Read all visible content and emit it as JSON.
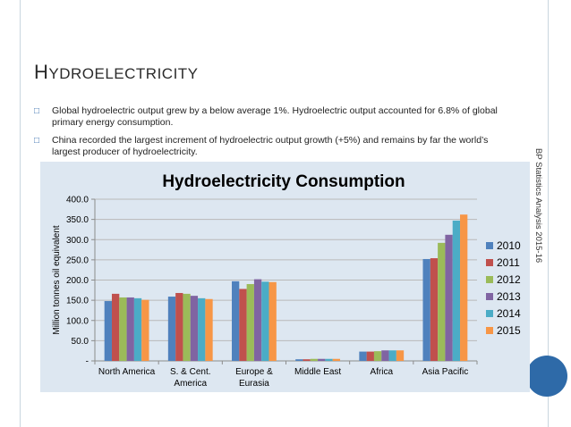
{
  "slide": {
    "title_first": "H",
    "title_rest": "YDROELECTRICITY",
    "bullets": [
      "Global hydroelectric output grew by a below average 1%. Hydroelectric output accounted for 6.8% of global primary energy consumption.",
      "China recorded the largest increment of hydroelectric output growth (+5%) and remains by far the world’s largest producer of hydroelectricity."
    ],
    "side_caption": "BP Statistics Analysis 2015-16",
    "bullet_icon": "hollow-square-bullet-icon"
  },
  "chart_data": {
    "type": "bar",
    "title": "Hydroelectricity Consumption",
    "ylabel": "Million tonnes oil equivalent",
    "xlabel": "",
    "categories": [
      "North America",
      "S. & Cent. America",
      "Europe & Eurasia",
      "Middle East",
      "Africa",
      "Asia Pacific"
    ],
    "category_lines": [
      [
        "North America"
      ],
      [
        "S. & Cent.",
        "America"
      ],
      [
        "Europe &",
        "Eurasia"
      ],
      [
        "Middle East"
      ],
      [
        "Africa"
      ],
      [
        "Asia Pacific"
      ]
    ],
    "ylim": [
      0,
      400
    ],
    "yticks": [
      0,
      50,
      100,
      150,
      200,
      250,
      300,
      350,
      400
    ],
    "ytick_labels": [
      "-",
      "50.0",
      "100.0",
      "150.0",
      "200.0",
      "250.0",
      "300.0",
      "350.0",
      "400.0"
    ],
    "grid": true,
    "legend_position": "right",
    "series": [
      {
        "name": "2010",
        "color": "#4f81bd",
        "values": [
          148,
          159,
          197,
          4,
          23,
          252
        ]
      },
      {
        "name": "2011",
        "color": "#c0504d",
        "values": [
          166,
          168,
          178,
          4,
          23,
          254
        ]
      },
      {
        "name": "2012",
        "color": "#9bbb59",
        "values": [
          157,
          166,
          190,
          5,
          24,
          292
        ]
      },
      {
        "name": "2013",
        "color": "#8064a2",
        "values": [
          157,
          161,
          202,
          5,
          26,
          312
        ]
      },
      {
        "name": "2014",
        "color": "#4bacc6",
        "values": [
          155,
          155,
          196,
          5,
          26,
          347
        ]
      },
      {
        "name": "2015",
        "color": "#f79646",
        "values": [
          151,
          153,
          195,
          5,
          26,
          362
        ]
      }
    ]
  }
}
